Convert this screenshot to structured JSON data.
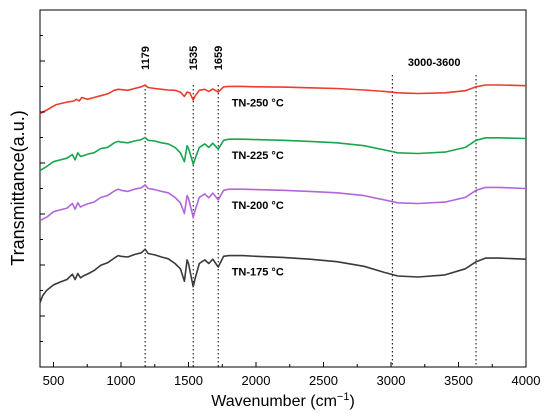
{
  "chart_data": {
    "type": "line",
    "xlabel": "Wavenumber (cm",
    "xlabel_sup": "−1",
    "xlabel_close": ")",
    "ylabel": "Transmittance(a.u.)",
    "xlim": [
      400,
      4000
    ],
    "ylim": [
      0,
      1
    ],
    "x_ticks": [
      500,
      1000,
      1500,
      2000,
      2500,
      3000,
      3500,
      4000
    ],
    "y_ticks_shown": false,
    "grid": false,
    "annotations": [
      {
        "label": "1179",
        "x": 1179
      },
      {
        "label": "1535",
        "x": 1535
      },
      {
        "label": "1659",
        "x": 1720
      },
      {
        "label": "3000-3600",
        "x": 3010,
        "x_end": 3630
      }
    ],
    "series": [
      {
        "name": "TN-250 °C",
        "color": "#ee3b2f",
        "points": [
          [
            400,
            0.71
          ],
          [
            450,
            0.72
          ],
          [
            520,
            0.735
          ],
          [
            600,
            0.742
          ],
          [
            650,
            0.745
          ],
          [
            670,
            0.75
          ],
          [
            690,
            0.745
          ],
          [
            710,
            0.755
          ],
          [
            750,
            0.75
          ],
          [
            800,
            0.755
          ],
          [
            850,
            0.76
          ],
          [
            900,
            0.765
          ],
          [
            950,
            0.775
          ],
          [
            980,
            0.778
          ],
          [
            1000,
            0.777
          ],
          [
            1050,
            0.775
          ],
          [
            1100,
            0.78
          ],
          [
            1150,
            0.785
          ],
          [
            1179,
            0.79
          ],
          [
            1200,
            0.783
          ],
          [
            1250,
            0.78
          ],
          [
            1300,
            0.778
          ],
          [
            1350,
            0.776
          ],
          [
            1400,
            0.775
          ],
          [
            1440,
            0.77
          ],
          [
            1470,
            0.758
          ],
          [
            1490,
            0.77
          ],
          [
            1510,
            0.768
          ],
          [
            1535,
            0.748
          ],
          [
            1550,
            0.76
          ],
          [
            1580,
            0.775
          ],
          [
            1620,
            0.778
          ],
          [
            1650,
            0.772
          ],
          [
            1680,
            0.779
          ],
          [
            1720,
            0.77
          ],
          [
            1760,
            0.785
          ],
          [
            1800,
            0.786
          ],
          [
            1900,
            0.786
          ],
          [
            2000,
            0.785
          ],
          [
            2200,
            0.784
          ],
          [
            2400,
            0.782
          ],
          [
            2600,
            0.78
          ],
          [
            2800,
            0.776
          ],
          [
            2950,
            0.772
          ],
          [
            3050,
            0.768
          ],
          [
            3200,
            0.766
          ],
          [
            3400,
            0.768
          ],
          [
            3550,
            0.774
          ],
          [
            3630,
            0.785
          ],
          [
            3700,
            0.79
          ],
          [
            3800,
            0.79
          ],
          [
            4000,
            0.788
          ]
        ]
      },
      {
        "name": "TN-225 °C",
        "color": "#18a64f",
        "points": [
          [
            400,
            0.55
          ],
          [
            450,
            0.562
          ],
          [
            500,
            0.575
          ],
          [
            550,
            0.58
          ],
          [
            600,
            0.585
          ],
          [
            640,
            0.595
          ],
          [
            660,
            0.58
          ],
          [
            680,
            0.6
          ],
          [
            700,
            0.59
          ],
          [
            720,
            0.592
          ],
          [
            760,
            0.597
          ],
          [
            800,
            0.6
          ],
          [
            850,
            0.612
          ],
          [
            900,
            0.615
          ],
          [
            950,
            0.628
          ],
          [
            980,
            0.632
          ],
          [
            1000,
            0.63
          ],
          [
            1050,
            0.628
          ],
          [
            1100,
            0.633
          ],
          [
            1150,
            0.637
          ],
          [
            1179,
            0.643
          ],
          [
            1200,
            0.635
          ],
          [
            1250,
            0.633
          ],
          [
            1300,
            0.628
          ],
          [
            1350,
            0.625
          ],
          [
            1400,
            0.615
          ],
          [
            1440,
            0.6
          ],
          [
            1470,
            0.575
          ],
          [
            1490,
            0.62
          ],
          [
            1500,
            0.612
          ],
          [
            1520,
            0.588
          ],
          [
            1535,
            0.568
          ],
          [
            1550,
            0.585
          ],
          [
            1580,
            0.615
          ],
          [
            1620,
            0.625
          ],
          [
            1650,
            0.615
          ],
          [
            1680,
            0.627
          ],
          [
            1720,
            0.61
          ],
          [
            1760,
            0.635
          ],
          [
            1800,
            0.638
          ],
          [
            1900,
            0.638
          ],
          [
            2000,
            0.637
          ],
          [
            2200,
            0.635
          ],
          [
            2400,
            0.632
          ],
          [
            2600,
            0.628
          ],
          [
            2800,
            0.62
          ],
          [
            2950,
            0.608
          ],
          [
            3050,
            0.6
          ],
          [
            3200,
            0.598
          ],
          [
            3400,
            0.602
          ],
          [
            3550,
            0.615
          ],
          [
            3630,
            0.635
          ],
          [
            3700,
            0.642
          ],
          [
            3800,
            0.642
          ],
          [
            4000,
            0.64
          ]
        ]
      },
      {
        "name": "TN-200 °C",
        "color": "#b366d9",
        "points": [
          [
            400,
            0.41
          ],
          [
            450,
            0.42
          ],
          [
            500,
            0.435
          ],
          [
            550,
            0.44
          ],
          [
            600,
            0.445
          ],
          [
            640,
            0.458
          ],
          [
            660,
            0.442
          ],
          [
            680,
            0.46
          ],
          [
            700,
            0.448
          ],
          [
            720,
            0.452
          ],
          [
            760,
            0.458
          ],
          [
            800,
            0.462
          ],
          [
            850,
            0.475
          ],
          [
            900,
            0.48
          ],
          [
            950,
            0.493
          ],
          [
            980,
            0.498
          ],
          [
            1000,
            0.495
          ],
          [
            1050,
            0.492
          ],
          [
            1100,
            0.498
          ],
          [
            1150,
            0.502
          ],
          [
            1179,
            0.51
          ],
          [
            1200,
            0.5
          ],
          [
            1250,
            0.497
          ],
          [
            1300,
            0.492
          ],
          [
            1350,
            0.488
          ],
          [
            1400,
            0.475
          ],
          [
            1440,
            0.46
          ],
          [
            1470,
            0.43
          ],
          [
            1490,
            0.48
          ],
          [
            1500,
            0.472
          ],
          [
            1520,
            0.442
          ],
          [
            1535,
            0.42
          ],
          [
            1550,
            0.44
          ],
          [
            1580,
            0.475
          ],
          [
            1620,
            0.485
          ],
          [
            1650,
            0.474
          ],
          [
            1680,
            0.487
          ],
          [
            1720,
            0.468
          ],
          [
            1760,
            0.495
          ],
          [
            1800,
            0.498
          ],
          [
            1900,
            0.498
          ],
          [
            2000,
            0.497
          ],
          [
            2200,
            0.495
          ],
          [
            2400,
            0.492
          ],
          [
            2600,
            0.488
          ],
          [
            2800,
            0.48
          ],
          [
            2950,
            0.468
          ],
          [
            3050,
            0.46
          ],
          [
            3200,
            0.458
          ],
          [
            3400,
            0.462
          ],
          [
            3550,
            0.475
          ],
          [
            3630,
            0.495
          ],
          [
            3700,
            0.503
          ],
          [
            3800,
            0.503
          ],
          [
            4000,
            0.5
          ]
        ]
      },
      {
        "name": "TN-175 °C",
        "color": "#3a3a3a",
        "points": [
          [
            400,
            0.18
          ],
          [
            420,
            0.2
          ],
          [
            450,
            0.215
          ],
          [
            500,
            0.23
          ],
          [
            550,
            0.238
          ],
          [
            600,
            0.245
          ],
          [
            640,
            0.26
          ],
          [
            660,
            0.245
          ],
          [
            680,
            0.262
          ],
          [
            700,
            0.25
          ],
          [
            720,
            0.255
          ],
          [
            760,
            0.262
          ],
          [
            800,
            0.27
          ],
          [
            850,
            0.285
          ],
          [
            900,
            0.292
          ],
          [
            950,
            0.305
          ],
          [
            980,
            0.312
          ],
          [
            1000,
            0.31
          ],
          [
            1050,
            0.308
          ],
          [
            1100,
            0.315
          ],
          [
            1150,
            0.32
          ],
          [
            1179,
            0.33
          ],
          [
            1200,
            0.318
          ],
          [
            1250,
            0.314
          ],
          [
            1300,
            0.308
          ],
          [
            1350,
            0.303
          ],
          [
            1400,
            0.29
          ],
          [
            1440,
            0.275
          ],
          [
            1470,
            0.24
          ],
          [
            1490,
            0.3
          ],
          [
            1500,
            0.29
          ],
          [
            1520,
            0.252
          ],
          [
            1535,
            0.225
          ],
          [
            1550,
            0.25
          ],
          [
            1580,
            0.29
          ],
          [
            1620,
            0.3
          ],
          [
            1650,
            0.29
          ],
          [
            1680,
            0.302
          ],
          [
            1720,
            0.28
          ],
          [
            1760,
            0.31
          ],
          [
            1800,
            0.312
          ],
          [
            1900,
            0.312
          ],
          [
            2000,
            0.31
          ],
          [
            2200,
            0.307
          ],
          [
            2400,
            0.302
          ],
          [
            2600,
            0.295
          ],
          [
            2800,
            0.282
          ],
          [
            2950,
            0.265
          ],
          [
            3050,
            0.255
          ],
          [
            3200,
            0.252
          ],
          [
            3400,
            0.258
          ],
          [
            3550,
            0.275
          ],
          [
            3630,
            0.295
          ],
          [
            3700,
            0.305
          ],
          [
            3800,
            0.305
          ],
          [
            4000,
            0.302
          ]
        ]
      }
    ],
    "series_label_x": 1820
  }
}
